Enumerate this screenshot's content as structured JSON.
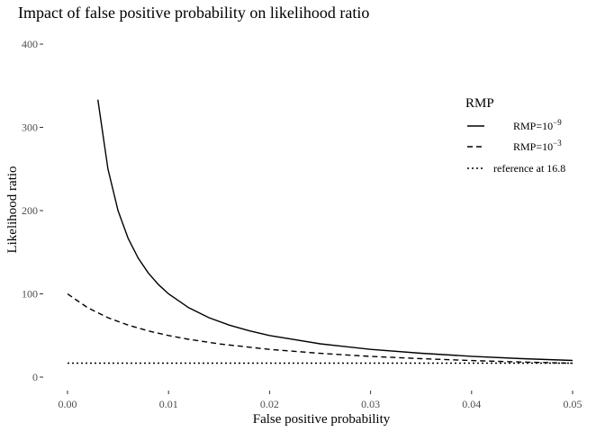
{
  "chart_data": {
    "type": "line",
    "title": "Impact of false positive probability on likelihood ratio",
    "xlabel": "False positive probability",
    "ylabel": "Likelihood ratio",
    "xlim": [
      0,
      0.05
    ],
    "ylim": [
      0,
      400
    ],
    "x_ticks": [
      0,
      0.01,
      0.02,
      0.03,
      0.04,
      0.05
    ],
    "x_tick_labels": [
      "0.00",
      "0.01",
      "0.02",
      "0.03",
      "0.04",
      "0.05"
    ],
    "y_ticks": [
      0,
      100,
      200,
      300,
      400
    ],
    "y_tick_labels": [
      "0",
      "100",
      "200",
      "300",
      "400"
    ],
    "grid": false,
    "legend": {
      "title": "RMP",
      "position": "right",
      "entries": [
        {
          "base": "RMP=10",
          "sup": "−9",
          "line": "solid"
        },
        {
          "base": "RMP=10",
          "sup": "−3",
          "line": "dashed"
        },
        {
          "base": "reference at 16.8",
          "sup": "",
          "line": "dotted"
        }
      ]
    },
    "series": [
      {
        "line": "solid",
        "x": [
          0.003,
          0.004,
          0.005,
          0.006,
          0.007,
          0.008,
          0.009,
          0.01,
          0.012,
          0.014,
          0.016,
          0.018,
          0.02,
          0.025,
          0.03,
          0.035,
          0.04,
          0.045,
          0.05
        ],
        "y": [
          333.3,
          250,
          200,
          166.7,
          142.9,
          125,
          111.1,
          100,
          83.3,
          71.4,
          62.5,
          55.6,
          50,
          40,
          33.3,
          28.6,
          25,
          22.2,
          20
        ]
      },
      {
        "line": "dashed",
        "x": [
          0,
          0.002,
          0.004,
          0.006,
          0.008,
          0.01,
          0.012,
          0.015,
          0.02,
          0.025,
          0.03,
          0.035,
          0.04,
          0.045,
          0.05
        ],
        "y": [
          99.9,
          83.3,
          71.4,
          62.5,
          55.5,
          50,
          45.4,
          39.9,
          33.3,
          28.5,
          24.9,
          22.2,
          19.9,
          18.1,
          16.6
        ]
      },
      {
        "line": "dotted",
        "x": [
          0,
          0.05
        ],
        "y": [
          16.8,
          16.8
        ]
      }
    ]
  }
}
